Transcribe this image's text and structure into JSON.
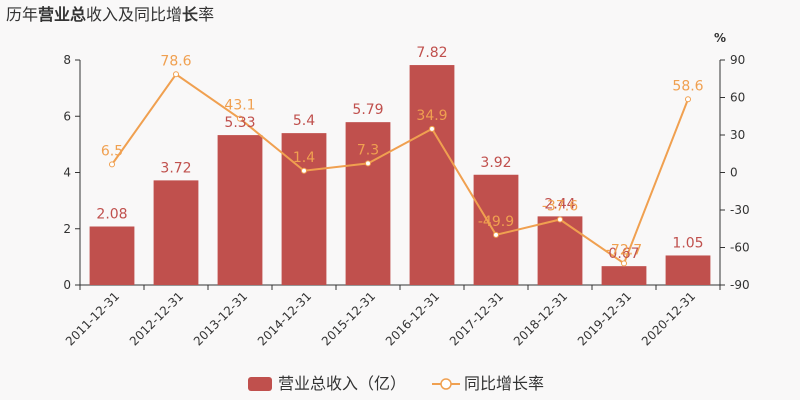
{
  "chart_data": {
    "type": "bar",
    "title_parts": [
      {
        "text": "历年",
        "bold": false
      },
      {
        "text": "营业总",
        "bold": true
      },
      {
        "text": "收入及同比增",
        "bold": false
      },
      {
        "text": "长",
        "bold": true
      },
      {
        "text": "率",
        "bold": false
      }
    ],
    "categories": [
      "2011-12-31",
      "2012-12-31",
      "2013-12-31",
      "2014-12-31",
      "2015-12-31",
      "2016-12-31",
      "2017-12-31",
      "2018-12-31",
      "2019-12-31",
      "2020-12-31"
    ],
    "series": [
      {
        "name": "营业总收入（亿）",
        "type": "bar",
        "axis": "left",
        "values": [
          2.08,
          3.72,
          5.33,
          5.4,
          5.79,
          7.82,
          3.92,
          2.44,
          0.67,
          1.05
        ],
        "labels": [
          "2.08",
          "3.72",
          "5.33",
          "5.4",
          "5.79",
          "7.82",
          "3.92",
          "2.44",
          "0.67",
          "1.05"
        ]
      },
      {
        "name": "同比增长率",
        "type": "line",
        "axis": "right",
        "values": [
          6.5,
          78.6,
          43.1,
          1.4,
          7.3,
          34.9,
          -49.9,
          -37.6,
          -72.7,
          58.6
        ],
        "labels": [
          "6.5",
          "78.6",
          "43.1",
          "1.4",
          "7.3",
          "34.9",
          "-49.9",
          "-37.6",
          "-72.7",
          "58.6"
        ]
      }
    ],
    "left_axis": {
      "min": 0,
      "max": 8,
      "ticks": [
        "0",
        "2",
        "4",
        "6",
        "8"
      ]
    },
    "right_axis": {
      "min": -90,
      "max": 90,
      "unit": "%",
      "ticks": [
        "-90",
        "-60",
        "-30",
        "0",
        "30",
        "60",
        "90"
      ]
    },
    "legend_position": "bottom",
    "colors": {
      "bar": "#c0504d",
      "line": "#f0a050",
      "bar_label": "#c0504d",
      "line_label": "#f0a050",
      "axis": "#333333",
      "background": "#f9f8f8"
    }
  }
}
